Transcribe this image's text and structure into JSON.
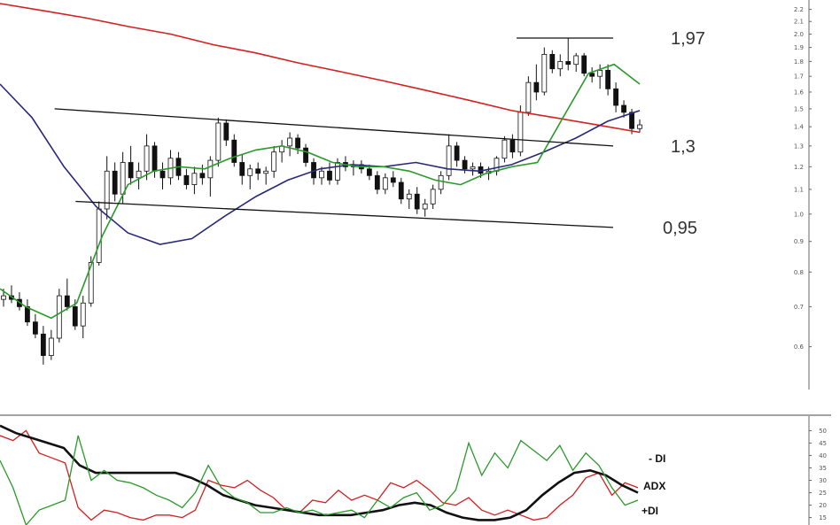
{
  "chart_data": [
    {
      "panel": "price",
      "type": "candlestick",
      "scale": "log",
      "ylim": [
        0.53,
        2.25
      ],
      "y_ticks": [
        "2.2",
        "2.1",
        "2.0",
        "1.9",
        "1.8",
        "1.7",
        "1.6",
        "1.5",
        "1.4",
        "1.3",
        "1.2",
        "1.1",
        "1.0",
        "0.9",
        "0.8",
        "0.7",
        "0.6"
      ],
      "y_tick_values": [
        2.2,
        2.1,
        2.0,
        1.9,
        1.8,
        1.7,
        1.6,
        1.5,
        1.4,
        1.3,
        1.2,
        1.1,
        1.0,
        0.9,
        0.8,
        0.7,
        0.6
      ],
      "axis_side": "right",
      "grid": false,
      "levels": [
        {
          "label": "1,97",
          "value": 1.97
        },
        {
          "label": "1,3",
          "value": 1.3
        },
        {
          "label": "0,95",
          "value": 0.95
        }
      ],
      "channel_lines": [
        {
          "name": "upper-trendline",
          "points": [
            [
              0.065,
              1.5
            ],
            [
              0.73,
              1.3
            ]
          ]
        },
        {
          "name": "lower-trendline",
          "points": [
            [
              0.09,
              1.05
            ],
            [
              0.73,
              0.95
            ]
          ]
        },
        {
          "name": "top-line",
          "points": [
            [
              0.615,
              1.97
            ],
            [
              0.73,
              1.97
            ]
          ]
        }
      ],
      "candles": [
        [
          0.72,
          0.75,
          0.7,
          0.73
        ],
        [
          0.73,
          0.76,
          0.71,
          0.72
        ],
        [
          0.72,
          0.74,
          0.69,
          0.7
        ],
        [
          0.7,
          0.72,
          0.65,
          0.66
        ],
        [
          0.66,
          0.68,
          0.62,
          0.63
        ],
        [
          0.63,
          0.65,
          0.56,
          0.58
        ],
        [
          0.58,
          0.64,
          0.57,
          0.62
        ],
        [
          0.62,
          0.75,
          0.61,
          0.73
        ],
        [
          0.73,
          0.78,
          0.69,
          0.7
        ],
        [
          0.7,
          0.72,
          0.64,
          0.65
        ],
        [
          0.65,
          0.73,
          0.62,
          0.71
        ],
        [
          0.71,
          0.85,
          0.7,
          0.83
        ],
        [
          0.83,
          1.05,
          0.82,
          1.02
        ],
        [
          1.02,
          1.25,
          0.98,
          1.18
        ],
        [
          1.18,
          1.22,
          1.05,
          1.08
        ],
        [
          1.08,
          1.27,
          1.04,
          1.22
        ],
        [
          1.22,
          1.3,
          1.12,
          1.15
        ],
        [
          1.15,
          1.22,
          1.1,
          1.18
        ],
        [
          1.18,
          1.36,
          1.14,
          1.3
        ],
        [
          1.3,
          1.32,
          1.15,
          1.18
        ],
        [
          1.18,
          1.22,
          1.1,
          1.15
        ],
        [
          1.15,
          1.28,
          1.12,
          1.24
        ],
        [
          1.24,
          1.27,
          1.14,
          1.16
        ],
        [
          1.16,
          1.19,
          1.1,
          1.12
        ],
        [
          1.12,
          1.2,
          1.08,
          1.17
        ],
        [
          1.17,
          1.21,
          1.12,
          1.15
        ],
        [
          1.15,
          1.25,
          1.07,
          1.23
        ],
        [
          1.23,
          1.45,
          1.2,
          1.42
        ],
        [
          1.42,
          1.44,
          1.3,
          1.33
        ],
        [
          1.33,
          1.36,
          1.2,
          1.22
        ],
        [
          1.22,
          1.26,
          1.12,
          1.16
        ],
        [
          1.16,
          1.21,
          1.1,
          1.19
        ],
        [
          1.19,
          1.22,
          1.14,
          1.17
        ],
        [
          1.17,
          1.2,
          1.12,
          1.18
        ],
        [
          1.18,
          1.3,
          1.15,
          1.27
        ],
        [
          1.27,
          1.33,
          1.22,
          1.3
        ],
        [
          1.3,
          1.37,
          1.25,
          1.34
        ],
        [
          1.34,
          1.36,
          1.26,
          1.29
        ],
        [
          1.29,
          1.31,
          1.2,
          1.22
        ],
        [
          1.22,
          1.24,
          1.12,
          1.15
        ],
        [
          1.15,
          1.2,
          1.12,
          1.18
        ],
        [
          1.18,
          1.22,
          1.12,
          1.14
        ],
        [
          1.14,
          1.24,
          1.12,
          1.22
        ],
        [
          1.22,
          1.25,
          1.18,
          1.2
        ],
        [
          1.2,
          1.23,
          1.16,
          1.21
        ],
        [
          1.21,
          1.23,
          1.17,
          1.19
        ],
        [
          1.19,
          1.21,
          1.14,
          1.16
        ],
        [
          1.16,
          1.18,
          1.08,
          1.1
        ],
        [
          1.1,
          1.17,
          1.08,
          1.15
        ],
        [
          1.15,
          1.18,
          1.11,
          1.13
        ],
        [
          1.13,
          1.15,
          1.04,
          1.06
        ],
        [
          1.06,
          1.1,
          1.02,
          1.08
        ],
        [
          1.08,
          1.11,
          1.0,
          1.02
        ],
        [
          1.02,
          1.06,
          0.99,
          1.04
        ],
        [
          1.04,
          1.12,
          1.02,
          1.1
        ],
        [
          1.1,
          1.18,
          1.08,
          1.16
        ],
        [
          1.16,
          1.36,
          1.14,
          1.3
        ],
        [
          1.3,
          1.32,
          1.2,
          1.23
        ],
        [
          1.23,
          1.25,
          1.17,
          1.19
        ],
        [
          1.19,
          1.22,
          1.16,
          1.2
        ],
        [
          1.2,
          1.22,
          1.15,
          1.17
        ],
        [
          1.17,
          1.2,
          1.14,
          1.18
        ],
        [
          1.18,
          1.25,
          1.16,
          1.24
        ],
        [
          1.24,
          1.35,
          1.22,
          1.33
        ],
        [
          1.33,
          1.36,
          1.24,
          1.27
        ],
        [
          1.27,
          1.52,
          1.25,
          1.48
        ],
        [
          1.48,
          1.7,
          1.46,
          1.66
        ],
        [
          1.66,
          1.78,
          1.55,
          1.6
        ],
        [
          1.6,
          1.9,
          1.58,
          1.85
        ],
        [
          1.85,
          1.88,
          1.72,
          1.75
        ],
        [
          1.75,
          1.85,
          1.7,
          1.8
        ],
        [
          1.8,
          1.97,
          1.74,
          1.78
        ],
        [
          1.78,
          1.86,
          1.73,
          1.84
        ],
        [
          1.84,
          1.86,
          1.7,
          1.72
        ],
        [
          1.72,
          1.76,
          1.66,
          1.7
        ],
        [
          1.7,
          1.78,
          1.62,
          1.74
        ],
        [
          1.74,
          1.78,
          1.58,
          1.62
        ],
        [
          1.62,
          1.66,
          1.48,
          1.52
        ],
        [
          1.52,
          1.55,
          1.45,
          1.48
        ],
        [
          1.48,
          1.5,
          1.36,
          1.39
        ],
        [
          1.39,
          1.44,
          1.37,
          1.41
        ]
      ],
      "moving_averages": [
        {
          "color": "#d32020",
          "values": [
            2.25,
            2.19,
            2.13,
            2.06,
            2.0,
            1.92,
            1.86,
            1.79,
            1.73,
            1.67,
            1.61,
            1.55,
            1.49,
            1.45,
            1.41,
            1.37
          ]
        },
        {
          "color": "#27297a",
          "values": [
            1.65,
            1.45,
            1.2,
            1.03,
            0.93,
            0.89,
            0.91,
            0.99,
            1.07,
            1.14,
            1.19,
            1.21,
            1.2,
            1.22,
            1.19,
            1.18,
            1.21,
            1.27,
            1.34,
            1.43,
            1.49
          ]
        },
        {
          "color": "#2a9a2a",
          "values": [
            0.75,
            0.7,
            0.67,
            0.71,
            0.92,
            1.12,
            1.18,
            1.2,
            1.19,
            1.24,
            1.28,
            1.3,
            1.27,
            1.22,
            1.2,
            1.2,
            1.18,
            1.14,
            1.12,
            1.17,
            1.2,
            1.22,
            1.45,
            1.72,
            1.78,
            1.65
          ]
        }
      ]
    },
    {
      "panel": "indicator",
      "type": "line",
      "ylim": [
        12,
        53
      ],
      "y_ticks": [
        "50",
        "45",
        "40",
        "35",
        "30",
        "25",
        "20",
        "15"
      ],
      "y_tick_values": [
        50,
        45,
        40,
        35,
        30,
        25,
        20,
        15
      ],
      "axis_side": "right",
      "series": [
        {
          "name": "- DI",
          "color": "#d32020",
          "values": [
            48,
            46,
            50,
            41,
            39,
            37,
            19,
            14,
            18,
            17,
            15,
            14,
            16,
            16,
            15,
            18,
            30,
            28,
            27,
            30,
            26,
            23,
            18,
            17,
            22,
            21,
            26,
            22,
            24,
            22,
            29,
            27,
            30,
            26,
            21,
            20,
            23,
            18,
            16,
            18,
            16,
            14,
            15,
            20,
            24,
            31,
            33,
            24,
            29,
            27
          ]
        },
        {
          "name": "ADX",
          "color": "#111111",
          "values": [
            52,
            49,
            47,
            45,
            43,
            36,
            33,
            33,
            33,
            33,
            33,
            33,
            31,
            28,
            24,
            22,
            20,
            19,
            18,
            17,
            16,
            16,
            16,
            17,
            18,
            20,
            21,
            20,
            17,
            15,
            14,
            14,
            15,
            18,
            24,
            29,
            33,
            34,
            32,
            28,
            25
          ]
        },
        {
          "name": "+DI",
          "color": "#2a9a2a",
          "values": [
            38,
            27,
            12,
            18,
            20,
            22,
            48,
            30,
            34,
            30,
            29,
            27,
            24,
            22,
            19,
            25,
            36,
            27,
            23,
            21,
            17,
            17,
            19,
            17,
            18,
            16,
            17,
            18,
            15,
            22,
            19,
            23,
            25,
            18,
            20,
            26,
            45,
            32,
            41,
            35,
            46,
            42,
            38,
            44,
            34,
            41,
            36,
            27,
            20,
            22
          ]
        }
      ]
    }
  ]
}
